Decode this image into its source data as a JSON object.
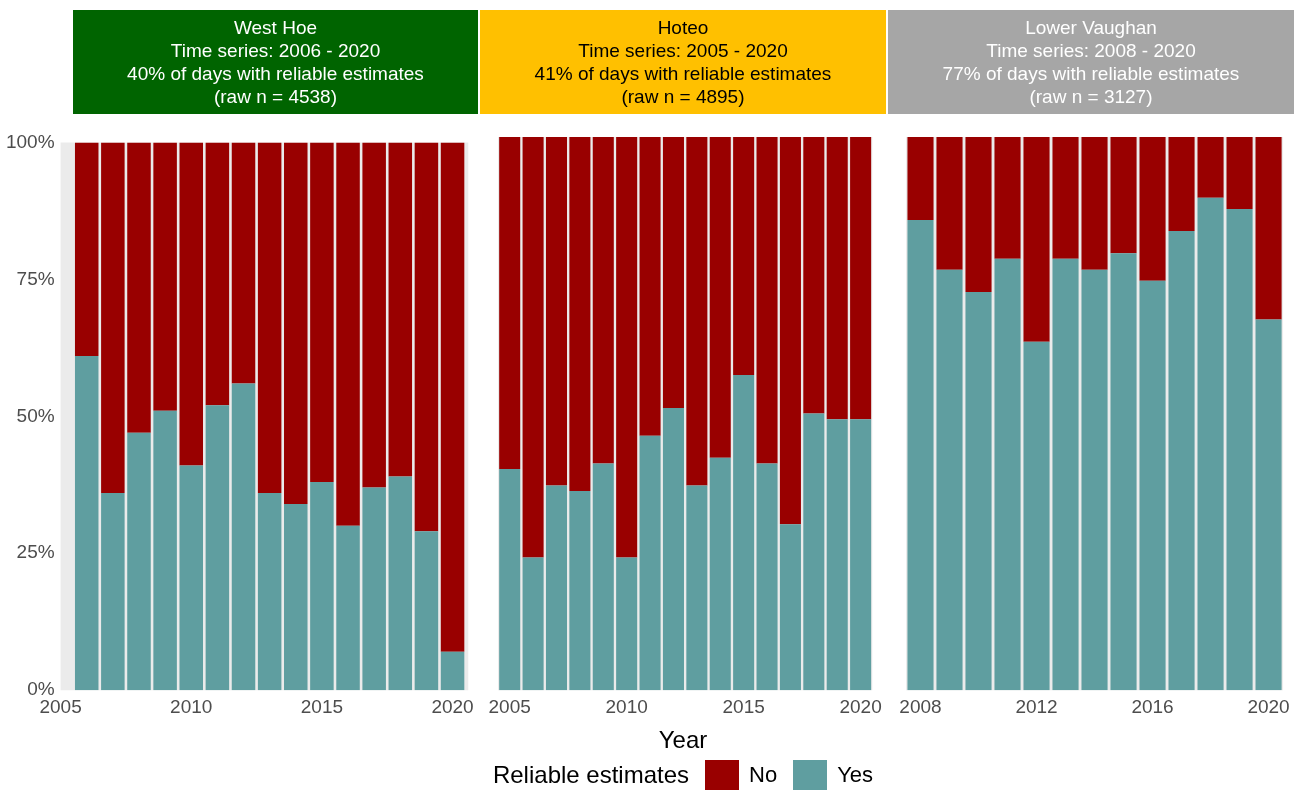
{
  "chart_data": [
    {
      "type": "bar",
      "title": "West Hoe",
      "subtitle": "Time series: 2006 - 2020\n40% of days with reliable estimates\n(raw n = 4538)",
      "x": [
        2006,
        2007,
        2008,
        2009,
        2010,
        2011,
        2012,
        2013,
        2014,
        2015,
        2016,
        2017,
        2018,
        2019,
        2020
      ],
      "stacked": true,
      "series": [
        {
          "color": "#5f9ea0",
          "values": [
            61,
            36,
            47,
            51,
            41,
            52,
            56,
            36,
            34,
            38,
            30,
            37,
            39,
            29,
            7
          ]
        },
        {
          "color": "#990000",
          "values": [
            39,
            64,
            53,
            49,
            59,
            48,
            44,
            64,
            66,
            62,
            70,
            63,
            61,
            71,
            93
          ]
        }
      ],
      "xlim": [
        2005,
        2020.6
      ],
      "xticks": [
        2005,
        2010,
        2015,
        2020
      ],
      "ylim": [
        0,
        100
      ],
      "yticks": [
        {
          "value": 0,
          "label": "0%"
        },
        {
          "value": 25,
          "label": "25%"
        },
        {
          "value": 50,
          "label": "50%"
        },
        {
          "value": 75,
          "label": "75%"
        },
        {
          "value": 100,
          "label": "100%"
        }
      ]
    },
    {
      "type": "bar",
      "title": "Hoteo",
      "subtitle": "Time series: 2005 - 2020\n41% of days with reliable estimates\n(raw n = 4895)",
      "x": [
        2005,
        2006,
        2007,
        2008,
        2009,
        2010,
        2011,
        2012,
        2013,
        2014,
        2015,
        2016,
        2017,
        2018,
        2019,
        2020
      ],
      "stacked": true,
      "series": [
        {
          "name": "Yes",
          "color": "#5f9ea0",
          "values": [
            40,
            24,
            37,
            36,
            41,
            24,
            46,
            51,
            37,
            42,
            57,
            41,
            30,
            50,
            49,
            49
          ]
        },
        {
          "name": "No",
          "color": "#990000",
          "values": [
            60,
            76,
            63,
            64,
            59,
            76,
            54,
            49,
            63,
            58,
            43,
            59,
            70,
            50,
            51,
            51
          ]
        }
      ],
      "xlim": [
        2004.5,
        2020.5
      ],
      "xticks": [
        2005,
        2010,
        2015,
        2020
      ],
      "ylim": [
        0,
        100
      ],
      "tick_labels": "x",
      "xlabel": "Year",
      "legend": "bottom",
      "legend_title": "Reliable estimates"
    },
    {
      "type": "bar",
      "title": "Lower Vaughan",
      "subtitle": "Time series: 2008 - 2020\n77% of days with reliable estimates\n(raw n = 3127)",
      "x": [
        2008,
        2009,
        2010,
        2011,
        2012,
        2013,
        2014,
        2015,
        2016,
        2017,
        2018,
        2019,
        2020
      ],
      "stacked": true,
      "series": [
        {
          "color": "#5f9ea0",
          "values": [
            85,
            76,
            72,
            78,
            63,
            78,
            76,
            79,
            74,
            83,
            89,
            87,
            67
          ]
        },
        {
          "color": "#990000",
          "values": [
            15,
            24,
            28,
            22,
            37,
            22,
            24,
            21,
            26,
            17,
            11,
            13,
            33
          ]
        }
      ],
      "xlim": [
        2007.5,
        2020.5
      ],
      "xticks": [
        2008,
        2012,
        2016,
        2020
      ],
      "ylim": [
        0,
        100
      ],
      "tick_labels": "x"
    }
  ]
}
